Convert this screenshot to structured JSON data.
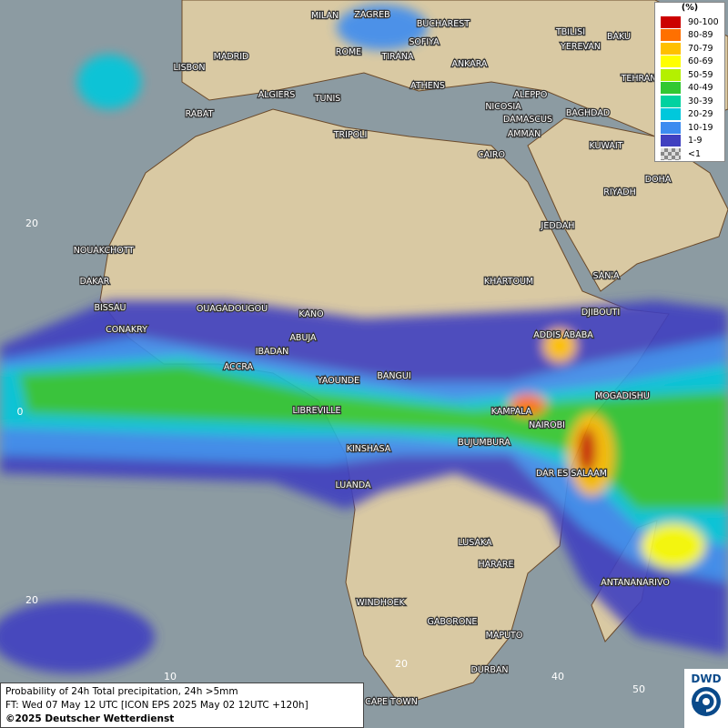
{
  "map": {
    "cities": [
      "MILAN",
      "ZAGREB",
      "BUCHAREST",
      "TBILISI",
      "BAKU",
      "MADRID",
      "ROME",
      "SOFIYA",
      "YEREVAN",
      "LISBON",
      "TIRANA",
      "ANKARA",
      "TEHRAN",
      "ALGIERS",
      "TUNIS",
      "ATHENS",
      "ALEPPO",
      "RABAT",
      "NICOSIA",
      "BAGHDAD",
      "DAMASCUS",
      "TRIPOLI",
      "AMMAN",
      "KUWAIT",
      "CAIRO",
      "DOHA",
      "RIYADH",
      "JEDDAH",
      "NOUAKCHOTT",
      "DAKAR",
      "KHARTOUM",
      "SAN'A",
      "BISSAU",
      "OUAGADOUGOU",
      "DJIBOUTI",
      "KANO",
      "CONAKRY",
      "ABUJA",
      "ADDIS ABABA",
      "IBADAN",
      "ACCRA",
      "YAOUNDE",
      "BANGUI",
      "MOGADISHU",
      "LIBREVILLE",
      "KAMPALA",
      "NAIROBI",
      "KINSHASA",
      "BUJUMBURA",
      "DAR ES SALAAM",
      "LUANDA",
      "LUSAKA",
      "HARARE",
      "ANTANANARIVO",
      "WINDHOEK",
      "GABORONE",
      "MAPUTO",
      "DURBAN",
      "CAPE TOWN"
    ],
    "grid_labels": [
      "20",
      "0",
      "20",
      "10",
      "20",
      "40",
      "50"
    ]
  },
  "legend": {
    "title": "(%)",
    "items": [
      {
        "label": "90-100",
        "color": "#cc0000"
      },
      {
        "label": "80-89",
        "color": "#ff7000"
      },
      {
        "label": "70-79",
        "color": "#ffc000"
      },
      {
        "label": "60-69",
        "color": "#ffff00"
      },
      {
        "label": "50-59",
        "color": "#b4f000"
      },
      {
        "label": "40-49",
        "color": "#32c832"
      },
      {
        "label": "30-39",
        "color": "#00d2a0"
      },
      {
        "label": "20-29",
        "color": "#00c8dc"
      },
      {
        "label": "10-19",
        "color": "#3c8cf0"
      },
      {
        "label": "1-9",
        "color": "#4040c0"
      },
      {
        "label": "<1",
        "color": "#b0b0b0"
      }
    ]
  },
  "footer": {
    "line1": "Probability of 24h Total precipitation, 24h >5mm",
    "line2": "FT: Wed 07 May 12 UTC [ICON EPS 2025 May 02 12UTC +120h]",
    "line3": "©2025 Deutscher Wetterdienst"
  },
  "logo": "DWD"
}
